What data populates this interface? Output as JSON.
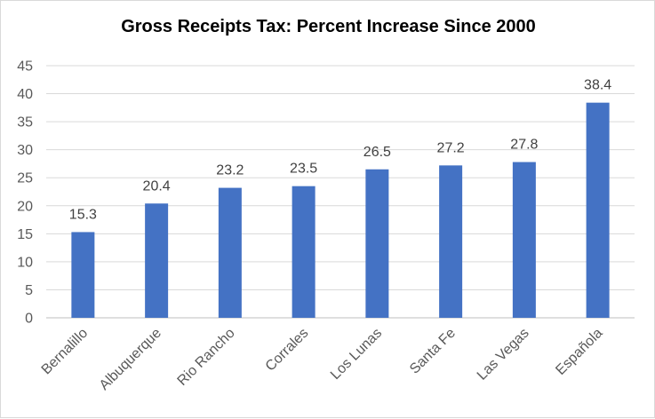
{
  "chart_data": {
    "type": "bar",
    "title": "Gross Receipts Tax: Percent Increase Since 2000",
    "xlabel": "",
    "ylabel": "",
    "categories": [
      "Bernalillo",
      "Albuquerque",
      "Rio Rancho",
      "Corrales",
      "Los Lunas",
      "Santa Fe",
      "Las Vegas",
      "Española"
    ],
    "values": [
      15.3,
      20.4,
      23.2,
      23.5,
      26.5,
      27.2,
      27.8,
      38.4
    ],
    "ylim": [
      0,
      45
    ],
    "yticks": [
      "0",
      "5",
      "10",
      "15",
      "20",
      "25",
      "30",
      "35",
      "40",
      "45"
    ],
    "grid": true,
    "data_labels": true,
    "legend": "none",
    "bar_color": "#4472c4",
    "grid_color": "#d9d9d9"
  }
}
